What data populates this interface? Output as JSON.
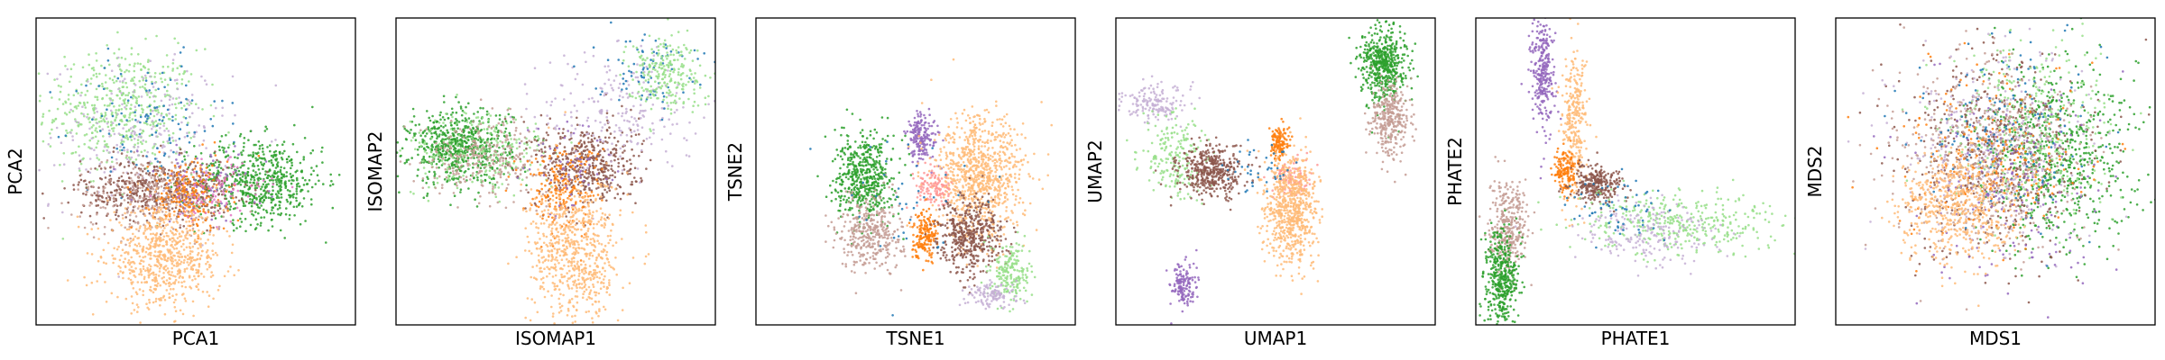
{
  "chart_data": [
    {
      "type": "scatter",
      "xlabel": "PCA1",
      "ylabel": "PCA2",
      "xticks": false,
      "yticks": false,
      "grid": false,
      "legend": false,
      "clusters": [
        {
          "color": "#98df8a",
          "cx": 0.27,
          "cy": 0.7,
          "sx": 0.12,
          "sy": 0.1,
          "n": 520
        },
        {
          "color": "#c5b0d5",
          "cx": 0.33,
          "cy": 0.62,
          "sx": 0.14,
          "sy": 0.12,
          "n": 240
        },
        {
          "color": "#1f77b4",
          "cx": 0.35,
          "cy": 0.66,
          "sx": 0.12,
          "sy": 0.1,
          "n": 110
        },
        {
          "color": "#2ca02c",
          "cx": 0.7,
          "cy": 0.47,
          "sx": 0.1,
          "sy": 0.07,
          "n": 600
        },
        {
          "color": "#8c564b",
          "cx": 0.38,
          "cy": 0.44,
          "sx": 0.12,
          "sy": 0.05,
          "n": 520
        },
        {
          "color": "#c49c94",
          "cx": 0.36,
          "cy": 0.42,
          "sx": 0.12,
          "sy": 0.06,
          "n": 260
        },
        {
          "color": "#ff7f0e",
          "cx": 0.48,
          "cy": 0.42,
          "sx": 0.06,
          "sy": 0.06,
          "n": 220
        },
        {
          "color": "#e377c2",
          "cx": 0.56,
          "cy": 0.44,
          "sx": 0.08,
          "sy": 0.05,
          "n": 90
        },
        {
          "color": "#9467bd",
          "cx": 0.52,
          "cy": 0.46,
          "sx": 0.1,
          "sy": 0.06,
          "n": 70
        },
        {
          "color": "#ffbb78",
          "cx": 0.4,
          "cy": 0.22,
          "sx": 0.09,
          "sy": 0.08,
          "n": 700
        }
      ]
    },
    {
      "type": "scatter",
      "xlabel": "ISOMAP1",
      "ylabel": "ISOMAP2",
      "xticks": false,
      "yticks": false,
      "grid": false,
      "legend": false,
      "clusters": [
        {
          "color": "#2ca02c",
          "cx": 0.2,
          "cy": 0.58,
          "sx": 0.08,
          "sy": 0.06,
          "n": 650
        },
        {
          "color": "#98df8a",
          "cx": 0.26,
          "cy": 0.56,
          "sx": 0.12,
          "sy": 0.07,
          "n": 220
        },
        {
          "color": "#c49c94",
          "cx": 0.28,
          "cy": 0.55,
          "sx": 0.1,
          "sy": 0.06,
          "n": 280
        },
        {
          "color": "#8c564b",
          "cx": 0.6,
          "cy": 0.52,
          "sx": 0.08,
          "sy": 0.07,
          "n": 480
        },
        {
          "color": "#c5b0d5",
          "cx": 0.7,
          "cy": 0.7,
          "sx": 0.12,
          "sy": 0.1,
          "n": 220
        },
        {
          "color": "#1f77b4",
          "cx": 0.78,
          "cy": 0.84,
          "sx": 0.08,
          "sy": 0.06,
          "n": 80
        },
        {
          "color": "#98df8a",
          "cx": 0.84,
          "cy": 0.82,
          "sx": 0.06,
          "sy": 0.06,
          "n": 240
        },
        {
          "color": "#ff7f0e",
          "cx": 0.52,
          "cy": 0.45,
          "sx": 0.06,
          "sy": 0.07,
          "n": 200
        },
        {
          "color": "#9467bd",
          "cx": 0.55,
          "cy": 0.5,
          "sx": 0.08,
          "sy": 0.08,
          "n": 60
        },
        {
          "color": "#ffbb78",
          "cx": 0.56,
          "cy": 0.24,
          "sx": 0.07,
          "sy": 0.12,
          "n": 700
        }
      ]
    },
    {
      "type": "scatter",
      "xlabel": "TSNE1",
      "ylabel": "TSNE2",
      "xticks": false,
      "yticks": false,
      "grid": false,
      "legend": false,
      "clusters": [
        {
          "color": "#2ca02c",
          "cx": 0.34,
          "cy": 0.48,
          "sx": 0.045,
          "sy": 0.07,
          "n": 520
        },
        {
          "color": "#c49c94",
          "cx": 0.36,
          "cy": 0.3,
          "sx": 0.05,
          "sy": 0.06,
          "n": 360
        },
        {
          "color": "#9467bd",
          "cx": 0.52,
          "cy": 0.61,
          "sx": 0.025,
          "sy": 0.04,
          "n": 180
        },
        {
          "color": "#ffbb78",
          "cx": 0.7,
          "cy": 0.48,
          "sx": 0.07,
          "sy": 0.1,
          "n": 900
        },
        {
          "color": "#ff9896",
          "cx": 0.56,
          "cy": 0.44,
          "sx": 0.03,
          "sy": 0.03,
          "n": 120
        },
        {
          "color": "#ff7f0e",
          "cx": 0.53,
          "cy": 0.3,
          "sx": 0.02,
          "sy": 0.04,
          "n": 180
        },
        {
          "color": "#8c564b",
          "cx": 0.67,
          "cy": 0.29,
          "sx": 0.05,
          "sy": 0.06,
          "n": 460
        },
        {
          "color": "#98df8a",
          "cx": 0.8,
          "cy": 0.17,
          "sx": 0.03,
          "sy": 0.05,
          "n": 200
        },
        {
          "color": "#c5b0d5",
          "cx": 0.74,
          "cy": 0.1,
          "sx": 0.04,
          "sy": 0.02,
          "n": 120
        },
        {
          "color": "#1f77b4",
          "cx": 0.47,
          "cy": 0.4,
          "sx": 0.1,
          "sy": 0.12,
          "n": 40
        }
      ]
    },
    {
      "type": "scatter",
      "xlabel": "UMAP1",
      "ylabel": "UMAP2",
      "xticks": false,
      "yticks": false,
      "grid": false,
      "legend": false,
      "clusters": [
        {
          "color": "#2ca02c",
          "cx": 0.84,
          "cy": 0.85,
          "sx": 0.035,
          "sy": 0.06,
          "n": 520
        },
        {
          "color": "#c49c94",
          "cx": 0.86,
          "cy": 0.67,
          "sx": 0.03,
          "sy": 0.06,
          "n": 320
        },
        {
          "color": "#c5b0d5",
          "cx": 0.12,
          "cy": 0.72,
          "sx": 0.05,
          "sy": 0.03,
          "n": 160
        },
        {
          "color": "#98df8a",
          "cx": 0.18,
          "cy": 0.55,
          "sx": 0.05,
          "sy": 0.07,
          "n": 200
        },
        {
          "color": "#8c564b",
          "cx": 0.3,
          "cy": 0.5,
          "sx": 0.05,
          "sy": 0.04,
          "n": 420
        },
        {
          "color": "#ff7f0e",
          "cx": 0.51,
          "cy": 0.59,
          "sx": 0.015,
          "sy": 0.03,
          "n": 130
        },
        {
          "color": "#ff9896",
          "cx": 0.55,
          "cy": 0.48,
          "sx": 0.03,
          "sy": 0.03,
          "n": 90
        },
        {
          "color": "#ffbb78",
          "cx": 0.55,
          "cy": 0.38,
          "sx": 0.04,
          "sy": 0.09,
          "n": 720
        },
        {
          "color": "#9467bd",
          "cx": 0.21,
          "cy": 0.12,
          "sx": 0.02,
          "sy": 0.04,
          "n": 150
        },
        {
          "color": "#1f77b4",
          "cx": 0.44,
          "cy": 0.52,
          "sx": 0.06,
          "sy": 0.04,
          "n": 40
        }
      ]
    },
    {
      "type": "scatter",
      "xlabel": "PHATE1",
      "ylabel": "PHATE2",
      "xticks": false,
      "yticks": false,
      "grid": false,
      "legend": false,
      "clusters": [
        {
          "color": "#9467bd",
          "cx": 0.21,
          "cy": 0.82,
          "sx": 0.018,
          "sy": 0.1,
          "n": 300
        },
        {
          "color": "#ffbb78",
          "cx": 0.31,
          "cy": 0.65,
          "sx": 0.02,
          "sy": 0.12,
          "n": 300
        },
        {
          "color": "#ff7f0e",
          "cx": 0.28,
          "cy": 0.5,
          "sx": 0.018,
          "sy": 0.04,
          "n": 150
        },
        {
          "color": "#8c564b",
          "cx": 0.38,
          "cy": 0.46,
          "sx": 0.04,
          "sy": 0.03,
          "n": 280
        },
        {
          "color": "#98df8a",
          "cx": 0.65,
          "cy": 0.33,
          "sx": 0.16,
          "sy": 0.05,
          "n": 380
        },
        {
          "color": "#c5b0d5",
          "cx": 0.55,
          "cy": 0.3,
          "sx": 0.12,
          "sy": 0.05,
          "n": 200
        },
        {
          "color": "#c49c94",
          "cx": 0.1,
          "cy": 0.32,
          "sx": 0.03,
          "sy": 0.07,
          "n": 320
        },
        {
          "color": "#2ca02c",
          "cx": 0.08,
          "cy": 0.15,
          "sx": 0.025,
          "sy": 0.08,
          "n": 420
        },
        {
          "color": "#1f77b4",
          "cx": 0.45,
          "cy": 0.38,
          "sx": 0.08,
          "sy": 0.05,
          "n": 60
        }
      ]
    },
    {
      "type": "scatter",
      "xlabel": "MDS1",
      "ylabel": "MDS2",
      "xticks": false,
      "yticks": false,
      "grid": false,
      "legend": false,
      "clusters": [
        {
          "color": "#2ca02c",
          "cx": 0.7,
          "cy": 0.55,
          "sx": 0.12,
          "sy": 0.15,
          "n": 650
        },
        {
          "color": "#8c564b",
          "cx": 0.5,
          "cy": 0.55,
          "sx": 0.14,
          "sy": 0.16,
          "n": 550
        },
        {
          "color": "#98df8a",
          "cx": 0.6,
          "cy": 0.65,
          "sx": 0.14,
          "sy": 0.15,
          "n": 350
        },
        {
          "color": "#c49c94",
          "cx": 0.45,
          "cy": 0.55,
          "sx": 0.15,
          "sy": 0.16,
          "n": 450
        },
        {
          "color": "#c5b0d5",
          "cx": 0.5,
          "cy": 0.6,
          "sx": 0.15,
          "sy": 0.16,
          "n": 300
        },
        {
          "color": "#1f77b4",
          "cx": 0.52,
          "cy": 0.62,
          "sx": 0.14,
          "sy": 0.15,
          "n": 150
        },
        {
          "color": "#ff7f0e",
          "cx": 0.48,
          "cy": 0.55,
          "sx": 0.15,
          "sy": 0.16,
          "n": 200
        },
        {
          "color": "#9467bd",
          "cx": 0.55,
          "cy": 0.45,
          "sx": 0.14,
          "sy": 0.15,
          "n": 180
        },
        {
          "color": "#ffbb78",
          "cx": 0.38,
          "cy": 0.38,
          "sx": 0.09,
          "sy": 0.09,
          "n": 600
        }
      ]
    }
  ]
}
